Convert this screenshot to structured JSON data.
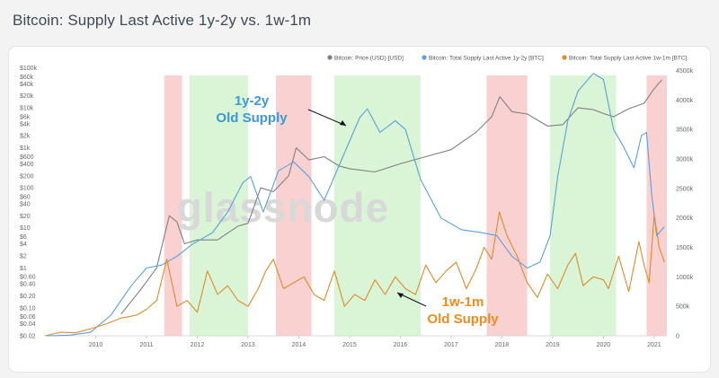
{
  "page": {
    "title": "Bitcoin: Supply Last Active 1y-2y vs. 1w-1m"
  },
  "watermark": "glassnode",
  "chart_data": {
    "type": "line",
    "title": "Bitcoin: Supply Last Active 1y-2y vs. 1w-1m",
    "x_ticks": [
      "2010",
      "2011",
      "2012",
      "2013",
      "2014",
      "2015",
      "2016",
      "2017",
      "2018",
      "2019",
      "2020",
      "2021"
    ],
    "x_range": [
      2009.0,
      2021.25
    ],
    "left_axis": {
      "scale": "log",
      "range": [
        0.02,
        120000
      ],
      "tick_labels": [
        "$100k",
        "$60k",
        "$40k",
        "$20k",
        "$10k",
        "$6k",
        "$4k",
        "$2k",
        "$1k",
        "$600",
        "$400",
        "$200",
        "$100",
        "$60",
        "$40",
        "$20",
        "$10",
        "$6",
        "$4",
        "$2",
        "$1",
        "$0.60",
        "$0.40",
        "$0.20",
        "$0.10",
        "$0.06",
        "$0.04",
        "$0.02"
      ],
      "tick_values": [
        100000,
        60000,
        40000,
        20000,
        10000,
        6000,
        4000,
        2000,
        1000,
        600,
        400,
        200,
        100,
        60,
        40,
        20,
        10,
        6,
        4,
        2,
        1,
        0.6,
        0.4,
        0.2,
        0.1,
        0.06,
        0.04,
        0.02
      ]
    },
    "right_axis": {
      "scale": "linear",
      "range": [
        0,
        4600000
      ],
      "tick_labels": [
        "0",
        "500k",
        "1000k",
        "1500k",
        "2000k",
        "2500k",
        "3000k",
        "3500k",
        "4000k",
        "4500k"
      ],
      "tick_values": [
        0,
        500000,
        1000000,
        1500000,
        2000000,
        2500000,
        3000000,
        3500000,
        4000000,
        4500000
      ]
    },
    "legend": {
      "placement": "top-right",
      "items": [
        {
          "name": "Bitcoin: Price (USD) [USD]",
          "color": "#808080"
        },
        {
          "name": "Bitcoin: Total Supply Last Active 1y-2y [BTC]",
          "color": "#5a9fe0"
        },
        {
          "name": "Bitcoin: Total Supply Last Active 1w-1m [BTC]",
          "color": "#e08a2c"
        }
      ]
    },
    "annotations": {
      "blue": [
        "1y-2y",
        "Old Supply"
      ],
      "orange": [
        "1w-1m",
        "Old Supply"
      ]
    },
    "shaded_regions": [
      {
        "from": 2011.35,
        "to": 2011.7,
        "color": "red"
      },
      {
        "from": 2011.85,
        "to": 2013.0,
        "color": "green"
      },
      {
        "from": 2013.55,
        "to": 2014.25,
        "color": "red"
      },
      {
        "from": 2014.7,
        "to": 2016.4,
        "color": "green"
      },
      {
        "from": 2017.7,
        "to": 2018.5,
        "color": "red"
      },
      {
        "from": 2018.95,
        "to": 2020.25,
        "color": "green"
      },
      {
        "from": 2020.85,
        "to": 2021.25,
        "color": "red"
      }
    ],
    "series": [
      {
        "name": "Bitcoin: Price (USD) [USD]",
        "axis": "left",
        "x": [
          2010.5,
          2010.9,
          2011.2,
          2011.45,
          2011.6,
          2011.75,
          2012.0,
          2012.4,
          2012.8,
          2013.0,
          2013.25,
          2013.5,
          2013.8,
          2013.95,
          2014.2,
          2014.5,
          2014.8,
          2015.0,
          2015.5,
          2016.0,
          2016.5,
          2017.0,
          2017.5,
          2017.8,
          2017.96,
          2018.2,
          2018.5,
          2018.9,
          2019.2,
          2019.5,
          2019.8,
          2020.0,
          2020.2,
          2020.5,
          2020.8,
          2021.0,
          2021.15
        ],
        "y": [
          0.07,
          0.3,
          1,
          20,
          14,
          4,
          5,
          5,
          11,
          13,
          100,
          80,
          200,
          1000,
          500,
          600,
          350,
          300,
          250,
          400,
          600,
          900,
          2500,
          6000,
          19000,
          8000,
          7000,
          3500,
          3800,
          10000,
          9000,
          7200,
          6000,
          9500,
          13000,
          30000,
          50000
        ]
      },
      {
        "name": "Bitcoin: Total Supply Last Active 1y-2y [BTC]",
        "axis": "right",
        "x": [
          2009.05,
          2009.5,
          2009.9,
          2010.3,
          2010.7,
          2011.0,
          2011.3,
          2011.6,
          2011.9,
          2012.3,
          2012.6,
          2012.9,
          2013.05,
          2013.3,
          2013.6,
          2013.9,
          2014.2,
          2014.5,
          2014.8,
          2014.95,
          2015.2,
          2015.35,
          2015.6,
          2015.9,
          2016.1,
          2016.4,
          2016.8,
          2017.2,
          2017.6,
          2017.9,
          2018.2,
          2018.5,
          2018.75,
          2018.95,
          2019.1,
          2019.3,
          2019.5,
          2019.8,
          2020.0,
          2020.2,
          2020.4,
          2020.6,
          2020.75,
          2020.85,
          2020.95,
          2021.05,
          2021.2
        ],
        "y": [
          0,
          10000,
          60000,
          350000,
          850000,
          1150000,
          1200000,
          1350000,
          1550000,
          1750000,
          2100000,
          2600000,
          2700000,
          2100000,
          2800000,
          2950000,
          2700000,
          2300000,
          2900000,
          3200000,
          3700000,
          3850000,
          3450000,
          3650000,
          3500000,
          2650000,
          2000000,
          1800000,
          1750000,
          1700000,
          1350000,
          1150000,
          1250000,
          1700000,
          2700000,
          3650000,
          4150000,
          4450000,
          4350000,
          3500000,
          3200000,
          2850000,
          3400000,
          3450000,
          2400000,
          1700000,
          1850000
        ]
      },
      {
        "name": "Bitcoin: Total Supply Last Active 1w-1m [BTC]",
        "axis": "right",
        "x": [
          2009.0,
          2009.3,
          2009.6,
          2009.9,
          2010.2,
          2010.5,
          2010.8,
          2011.0,
          2011.2,
          2011.4,
          2011.5,
          2011.6,
          2011.8,
          2012.0,
          2012.2,
          2012.4,
          2012.6,
          2012.8,
          2013.0,
          2013.2,
          2013.35,
          2013.5,
          2013.7,
          2013.9,
          2014.1,
          2014.3,
          2014.5,
          2014.7,
          2014.9,
          2015.1,
          2015.3,
          2015.5,
          2015.7,
          2015.9,
          2016.1,
          2016.3,
          2016.5,
          2016.7,
          2016.9,
          2017.1,
          2017.3,
          2017.5,
          2017.65,
          2017.8,
          2017.95,
          2018.1,
          2018.3,
          2018.5,
          2018.7,
          2018.9,
          2019.1,
          2019.3,
          2019.45,
          2019.6,
          2019.8,
          2020.0,
          2020.1,
          2020.3,
          2020.5,
          2020.7,
          2020.8,
          2020.9,
          2021.0,
          2021.1,
          2021.2
        ],
        "y": [
          0,
          60000,
          50000,
          120000,
          200000,
          300000,
          350000,
          450000,
          600000,
          1300000,
          900000,
          500000,
          600000,
          400000,
          1100000,
          700000,
          850000,
          600000,
          500000,
          800000,
          1100000,
          1300000,
          800000,
          900000,
          1000000,
          700000,
          600000,
          1100000,
          500000,
          700000,
          600000,
          950000,
          700000,
          1000000,
          800000,
          700000,
          1200000,
          900000,
          1100000,
          1250000,
          800000,
          1150000,
          1500000,
          1300000,
          2100000,
          1700000,
          1350000,
          900000,
          650000,
          1050000,
          800000,
          1200000,
          1400000,
          850000,
          1000000,
          950000,
          800000,
          1350000,
          750000,
          1600000,
          1200000,
          900000,
          2050000,
          1500000,
          1250000
        ]
      }
    ]
  }
}
